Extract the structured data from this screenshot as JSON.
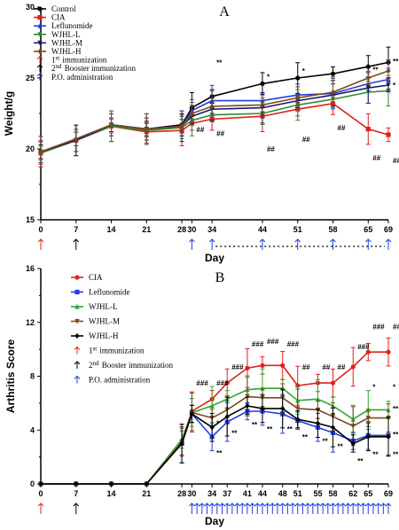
{
  "chart_data": [
    {
      "panel": "A",
      "type": "line",
      "ylabel": "Weight/g",
      "xlabel": "Day",
      "ylim": [
        15,
        30
      ],
      "yticks": [
        "15",
        "20",
        "25",
        "30"
      ],
      "x": [
        0,
        7,
        14,
        21,
        28,
        30,
        34,
        44,
        51,
        58,
        65,
        69
      ],
      "xtick_labels": [
        "0",
        "7",
        "14",
        "21",
        "28",
        "30",
        "34",
        "44",
        "51",
        "58",
        "65",
        "69"
      ],
      "series": [
        {
          "name": "Control",
          "color": "#000000",
          "marker": "circle",
          "values": [
            19.8,
            20.6,
            21.6,
            21.4,
            21.7,
            22.9,
            23.7,
            24.6,
            25.0,
            25.3,
            25.8,
            26.1
          ]
        },
        {
          "name": "CIA",
          "color": "#e0201c",
          "marker": "square",
          "values": [
            19.7,
            20.6,
            21.6,
            21.2,
            21.3,
            21.8,
            22.1,
            22.3,
            22.8,
            23.2,
            21.4,
            21.0
          ]
        },
        {
          "name": "Leflunomide",
          "color": "#1f3fe0",
          "marker": "triangle",
          "values": [
            19.8,
            20.7,
            21.7,
            21.4,
            21.6,
            22.7,
            23.4,
            23.4,
            23.8,
            23.9,
            24.6,
            24.9
          ]
        },
        {
          "name": "WJHL-L",
          "color": "#2e8b2e",
          "marker": "triangle-down",
          "values": [
            19.7,
            20.6,
            21.6,
            21.3,
            21.5,
            22.0,
            22.4,
            22.5,
            23.1,
            23.5,
            24.0,
            24.1
          ]
        },
        {
          "name": "WJHL-M",
          "color": "#1a1a6e",
          "marker": "triangle-down",
          "values": [
            19.8,
            20.6,
            21.7,
            21.4,
            21.6,
            22.3,
            22.8,
            22.9,
            23.4,
            23.8,
            24.3,
            24.5
          ]
        },
        {
          "name": "WJHL-H",
          "color": "#7a4a1e",
          "marker": "diamond",
          "values": [
            19.8,
            20.7,
            21.7,
            21.4,
            21.6,
            22.5,
            23.0,
            23.1,
            23.6,
            24.0,
            25.0,
            25.5
          ]
        }
      ],
      "legend_extra": [
        {
          "sup": "st",
          "pre": "1",
          "post": "immunization",
          "color": "#e0201c"
        },
        {
          "sup": "nd",
          "pre": "2",
          "post": "Booster immunization",
          "color": "#000000"
        },
        {
          "sup": "",
          "pre": "P.O. administration",
          "post": "",
          "color": "#1f3fe0"
        }
      ],
      "annotations": [
        {
          "text": "**",
          "x": 34,
          "y": 25.9
        },
        {
          "text": "*",
          "x": 44,
          "y": 24.9
        },
        {
          "text": "*",
          "x": 51,
          "y": 25.3
        },
        {
          "text": "**",
          "x": 65,
          "y": 25.4
        },
        {
          "text": "**",
          "x": 69,
          "y": 26.0
        },
        {
          "text": "*",
          "x": 69,
          "y": 24.3
        },
        {
          "text": "##",
          "x": 30,
          "y": 21.2
        },
        {
          "text": "##",
          "x": 34,
          "y": 20.9
        },
        {
          "text": "##",
          "x": 44,
          "y": 19.8
        },
        {
          "text": "##",
          "x": 51,
          "y": 20.5
        },
        {
          "text": "##",
          "x": 58,
          "y": 21.3
        },
        {
          "text": "##",
          "x": 65,
          "y": 19.2
        },
        {
          "text": "##",
          "x": 69,
          "y": 19.0
        }
      ],
      "immunization_days": [
        0,
        7
      ],
      "po_days": [
        30,
        34,
        44,
        51,
        58,
        65,
        69
      ]
    },
    {
      "panel": "B",
      "type": "line",
      "ylabel": "Arthritis Score",
      "xlabel": "Day",
      "ylim": [
        0,
        16
      ],
      "yticks": [
        "0",
        "4",
        "8",
        "12",
        "16"
      ],
      "x": [
        0,
        7,
        14,
        21,
        28,
        30,
        34,
        37,
        41,
        44,
        48,
        51,
        55,
        58,
        62,
        65,
        69
      ],
      "xtick_labels": [
        "0",
        "7",
        "14",
        "21",
        "28",
        "30",
        "34",
        "37",
        "41",
        "44",
        "48",
        "51",
        "55",
        "58",
        "62",
        "65",
        "69"
      ],
      "series": [
        {
          "name": "CIA",
          "color": "#e0201c",
          "marker": "circle",
          "values": [
            0,
            0,
            0,
            0,
            3.2,
            5.4,
            6.3,
            7.5,
            8.6,
            8.8,
            8.8,
            7.3,
            7.5,
            7.5,
            8.7,
            9.8,
            9.8
          ]
        },
        {
          "name": "Leflunomide",
          "color": "#1f3fe0",
          "marker": "square",
          "values": [
            0,
            0,
            0,
            0,
            3.0,
            5.2,
            3.5,
            4.6,
            5.4,
            5.4,
            5.2,
            4.7,
            4.2,
            3.8,
            3.2,
            3.6,
            3.6
          ]
        },
        {
          "name": "WJHL-L",
          "color": "#2ea82e",
          "marker": "triangle",
          "values": [
            0,
            0,
            0,
            0,
            3.3,
            5.3,
            5.8,
            6.3,
            7.0,
            7.1,
            7.1,
            6.2,
            6.3,
            5.8,
            4.8,
            5.5,
            5.5
          ]
        },
        {
          "name": "WJHL-M",
          "color": "#7a4a1e",
          "marker": "triangle-down",
          "values": [
            0,
            0,
            0,
            0,
            3.1,
            5.3,
            4.9,
            5.5,
            6.5,
            6.4,
            6.4,
            5.6,
            5.5,
            5.0,
            4.3,
            4.9,
            4.9
          ]
        },
        {
          "name": "WJHL-H",
          "color": "#000000",
          "marker": "diamond",
          "values": [
            0,
            0,
            0,
            0,
            3.0,
            5.2,
            4.2,
            5.0,
            5.8,
            5.6,
            5.6,
            4.8,
            4.5,
            4.2,
            3.0,
            3.5,
            3.5
          ]
        }
      ],
      "legend_extra": [
        {
          "sup": "st",
          "pre": "1",
          "post": "immunization",
          "color": "#e0201c"
        },
        {
          "sup": "nd",
          "pre": "2",
          "post": "Booster immunization",
          "color": "#000000"
        },
        {
          "sup": "",
          "pre": "P.O. administration",
          "post": "",
          "color": "#1f3fe0"
        }
      ],
      "annotations": [
        {
          "text": "###",
          "x": 30,
          "y": 7.3
        },
        {
          "text": "###",
          "x": 34,
          "y": 7.3
        },
        {
          "text": "###",
          "x": 37,
          "y": 8.5
        },
        {
          "text": "###",
          "x": 41,
          "y": 10.2
        },
        {
          "text": "###",
          "x": 44,
          "y": 10.4
        },
        {
          "text": "###",
          "x": 48,
          "y": 10.2
        },
        {
          "text": "##",
          "x": 51,
          "y": 8.5
        },
        {
          "text": "##",
          "x": 55,
          "y": 8.5
        },
        {
          "text": "##",
          "x": 58,
          "y": 8.5
        },
        {
          "text": "###",
          "x": 62,
          "y": 10.0
        },
        {
          "text": "###",
          "x": 65,
          "y": 11.5
        },
        {
          "text": "###",
          "x": 69,
          "y": 11.5
        },
        {
          "text": "*",
          "x": 34,
          "y": 4.3
        },
        {
          "text": "**",
          "x": 34,
          "y": 2.1
        },
        {
          "text": "**",
          "x": 37,
          "y": 3.6
        },
        {
          "text": "**",
          "x": 41,
          "y": 4.2
        },
        {
          "text": "**",
          "x": 44,
          "y": 3.9
        },
        {
          "text": "**",
          "x": 48,
          "y": 3.9
        },
        {
          "text": "**",
          "x": 51,
          "y": 3.3
        },
        {
          "text": "**",
          "x": 55,
          "y": 3.0
        },
        {
          "text": "**",
          "x": 58,
          "y": 2.6
        },
        {
          "text": "**",
          "x": 62,
          "y": 1.5
        },
        {
          "text": "*",
          "x": 65,
          "y": 7.0
        },
        {
          "text": "**",
          "x": 65,
          "y": 2.0
        },
        {
          "text": "*",
          "x": 69,
          "y": 7.0
        },
        {
          "text": "**",
          "x": 69,
          "y": 5.4
        },
        {
          "text": "**",
          "x": 69,
          "y": 3.5
        },
        {
          "text": "**",
          "x": 69,
          "y": 2.0
        }
      ],
      "immunization_days": [
        0,
        7
      ],
      "po_days": [
        30,
        31,
        32,
        33,
        34,
        35,
        36,
        37,
        38,
        39,
        40,
        41,
        42,
        43,
        44,
        45,
        46,
        47,
        48,
        49,
        50,
        51,
        52,
        53,
        54,
        55,
        56,
        57,
        58,
        59,
        60,
        61,
        62,
        63,
        64,
        65,
        66,
        67,
        68,
        69
      ]
    }
  ]
}
